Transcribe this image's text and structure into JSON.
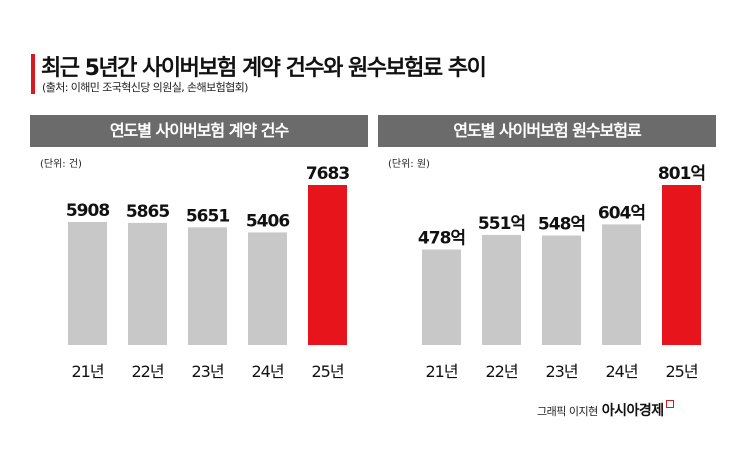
{
  "title": "최근 5년간 사이버보험 계약 건수와 원수보험료 추이",
  "source": "(출처: 이해민 조국혁신당 의원실, 손해보험협회)",
  "credit": {
    "label": "그래픽 이지현",
    "brand": "아시아경제"
  },
  "colors": {
    "accent": "#d71920",
    "bar": "#c8c8c8",
    "highlight": "#e8141c",
    "header": "#6b6b6b"
  },
  "chart_data": [
    {
      "type": "bar",
      "title": "연도별 사이버보험 계약 건수",
      "unit": "(단위: 건)",
      "categories": [
        "21년",
        "22년",
        "23년",
        "24년",
        "25년"
      ],
      "values": [
        5908,
        5865,
        5651,
        5406,
        7683
      ],
      "labels": [
        "5908",
        "5865",
        "5651",
        "5406",
        "7683"
      ],
      "highlight_index": 4,
      "ylim": [
        0,
        7683
      ]
    },
    {
      "type": "bar",
      "title": "연도별 사이버보험 원수보험료",
      "unit": "(단위: 원)",
      "categories": [
        "21년",
        "22년",
        "23년",
        "24년",
        "25년"
      ],
      "values": [
        478,
        551,
        548,
        604,
        801
      ],
      "labels": [
        "478억",
        "551억",
        "548억",
        "604억",
        "801억"
      ],
      "highlight_index": 4,
      "ylim": [
        0,
        801
      ]
    }
  ]
}
